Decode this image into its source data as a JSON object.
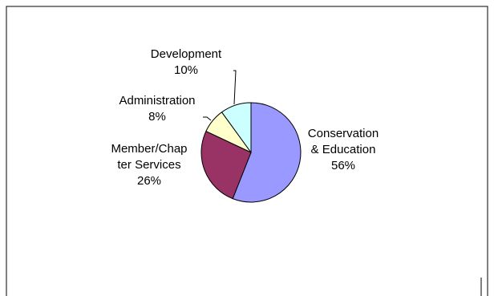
{
  "chart_data": {
    "type": "pie",
    "slices": [
      {
        "label_lines": [
          "Conservation",
          "& Education"
        ],
        "percent_label": "56%",
        "value": 56,
        "color": "#9999ff"
      },
      {
        "label_lines": [
          "Member/Chap",
          "ter Services"
        ],
        "percent_label": "26%",
        "value": 26,
        "color": "#993366"
      },
      {
        "label_lines": [
          "Administration"
        ],
        "percent_label": "8%",
        "value": 8,
        "color": "#ffffcc"
      },
      {
        "label_lines": [
          "Development"
        ],
        "percent_label": "10%",
        "value": 10,
        "color": "#ccffff"
      }
    ],
    "legend": "none"
  }
}
